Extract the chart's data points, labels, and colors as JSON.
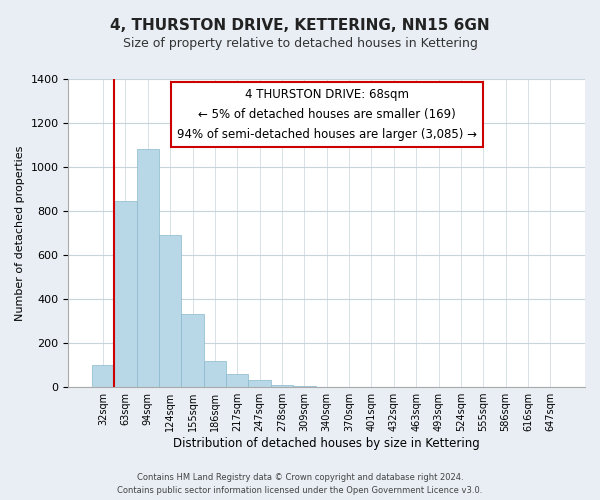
{
  "title": "4, THURSTON DRIVE, KETTERING, NN15 6GN",
  "subtitle": "Size of property relative to detached houses in Kettering",
  "xlabel": "Distribution of detached houses by size in Kettering",
  "ylabel": "Number of detached properties",
  "bar_labels": [
    "32sqm",
    "63sqm",
    "94sqm",
    "124sqm",
    "155sqm",
    "186sqm",
    "217sqm",
    "247sqm",
    "278sqm",
    "309sqm",
    "340sqm",
    "370sqm",
    "401sqm",
    "432sqm",
    "463sqm",
    "493sqm",
    "524sqm",
    "555sqm",
    "586sqm",
    "616sqm",
    "647sqm"
  ],
  "bar_values": [
    100,
    845,
    1080,
    690,
    330,
    120,
    60,
    30,
    10,
    5,
    2,
    0,
    0,
    0,
    0,
    0,
    0,
    0,
    0,
    0,
    0
  ],
  "bar_color": "#b8d8e8",
  "bar_edge_color": "#8ab8cc",
  "ylim": [
    0,
    1400
  ],
  "yticks": [
    0,
    200,
    400,
    600,
    800,
    1000,
    1200,
    1400
  ],
  "marker_bar_index": 1,
  "marker_color": "#cc0000",
  "annotation_title": "4 THURSTON DRIVE: 68sqm",
  "annotation_line1": "← 5% of detached houses are smaller (169)",
  "annotation_line2": "94% of semi-detached houses are larger (3,085) →",
  "annotation_box_color": "#ffffff",
  "annotation_box_edge": "#cc0000",
  "footer_line1": "Contains HM Land Registry data © Crown copyright and database right 2024.",
  "footer_line2": "Contains public sector information licensed under the Open Government Licence v3.0.",
  "bg_color": "#e8eef4",
  "plot_bg_color": "#ffffff",
  "grid_color": "#c8d4dc"
}
